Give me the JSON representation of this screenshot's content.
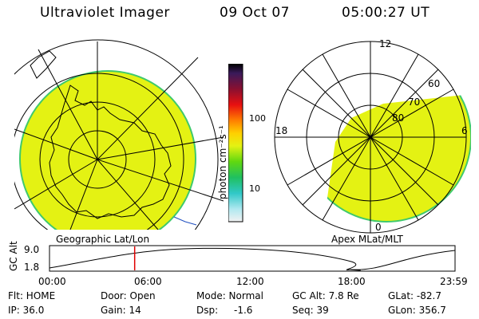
{
  "header": {
    "title": "Ultraviolet Imager",
    "date": "09 Oct 07",
    "time": "05:00:27 UT"
  },
  "left_panel": {
    "caption": "Geographic Lat/Lon"
  },
  "right_panel": {
    "caption": "Apex MLat/MLT",
    "mlt_labels": {
      "top": "12",
      "left": "18",
      "right": "6",
      "bottom": "0"
    },
    "lat_labels": [
      "60",
      "70",
      "80"
    ]
  },
  "colorbar": {
    "unit_label": "photon cm⁻²s⁻¹",
    "ticks": [
      "100",
      "10"
    ]
  },
  "altitude_plot": {
    "ylabel": "GC Alt",
    "yticks": [
      "9.0",
      "1.8"
    ],
    "xticks": [
      "00:00",
      "06:00",
      "12:00",
      "18:00",
      "23:59"
    ],
    "current_time_fraction": 0.21
  },
  "info": {
    "flt": "Flt: HOME",
    "ip": "IP: 36.0",
    "door": "Door: Open",
    "gain": "Gain: 14",
    "mode": "Mode: Normal",
    "dsp_label": "Dsp:",
    "dsp_value": "-1.6",
    "gcalt": "GC Alt: 7.8 Re",
    "seq": "Seq: 39",
    "glat": "GLat: -82.7",
    "glon": "GLon: 356.7"
  },
  "colors": {
    "emission": "#e4f213",
    "emission_edge": "#3fc96c"
  }
}
